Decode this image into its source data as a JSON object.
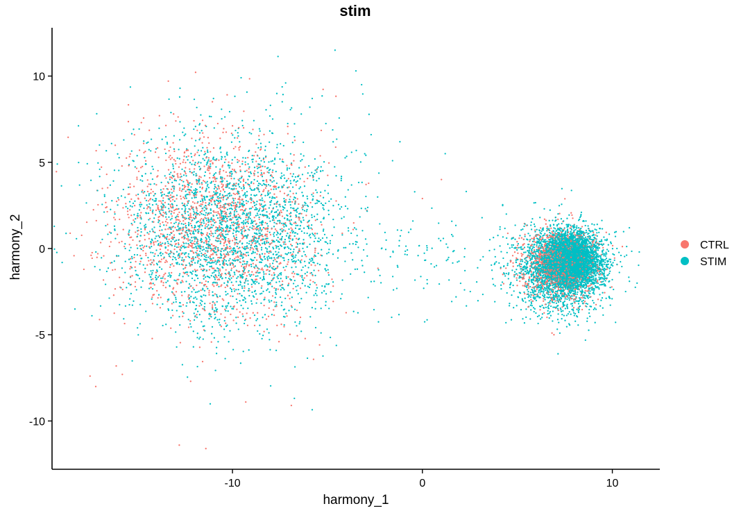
{
  "chart_data": {
    "type": "scatter",
    "title": "stim",
    "xlabel": "harmony_1",
    "ylabel": "harmony_2",
    "xlim": [
      -19.5,
      12.5
    ],
    "ylim": [
      -12.8,
      12.8
    ],
    "xticks": [
      -10,
      0,
      10
    ],
    "yticks": [
      -10,
      -5,
      0,
      5,
      10
    ],
    "grid": false,
    "legend_position": "right",
    "series": [
      {
        "name": "CTRL",
        "color": "#F8766D",
        "clusters": [
          {
            "center": [
              -11.0,
              1.3
            ],
            "sd": [
              2.6,
              2.7
            ],
            "n": 1500
          },
          {
            "center": [
              7.2,
              -0.9
            ],
            "sd": [
              1.0,
              1.0
            ],
            "n": 1200
          }
        ],
        "outliers": [
          [
            -12.8,
            -11.4
          ],
          [
            -11.4,
            -11.6
          ],
          [
            -17.5,
            -7.4
          ],
          [
            -17.2,
            -8.0
          ],
          [
            -6.9,
            -9.1
          ],
          [
            -9.3,
            -8.9
          ],
          [
            -12.2,
            -7.7
          ],
          [
            -15.8,
            -7.3
          ],
          [
            1.0,
            4.0
          ],
          [
            0.0,
            2.9
          ],
          [
            -14.8,
            7.3
          ],
          [
            -13.1,
            7.8
          ]
        ]
      },
      {
        "name": "STIM",
        "color": "#00BFC4",
        "clusters": [
          {
            "center": [
              -10.0,
              1.0
            ],
            "sd": [
              3.0,
              2.8
            ],
            "n": 2600
          },
          {
            "center": [
              7.7,
              -0.6
            ],
            "sd": [
              0.75,
              0.75
            ],
            "n": 4000
          },
          {
            "center": [
              7.3,
              -1.3
            ],
            "sd": [
              1.3,
              1.25
            ],
            "n": 1800
          },
          {
            "center": [
              1.5,
              -0.8
            ],
            "sd": [
              2.2,
              1.6
            ],
            "n": 100
          }
        ],
        "outliers": [
          [
            -4.6,
            11.5
          ],
          [
            -3.5,
            10.3
          ],
          [
            -17.0,
            6.0
          ],
          [
            -3.2,
            9.5
          ],
          [
            -2.7,
            6.6
          ],
          [
            1.2,
            5.5
          ],
          [
            -17.4,
            -3.9
          ],
          [
            10.9,
            -1.9
          ],
          [
            -15.0,
            -4.6
          ],
          [
            -7.2,
            9.6
          ],
          [
            -8.0,
            8.3
          ],
          [
            -5.8,
            8.7
          ],
          [
            -11.0,
            8.7
          ]
        ]
      }
    ]
  }
}
